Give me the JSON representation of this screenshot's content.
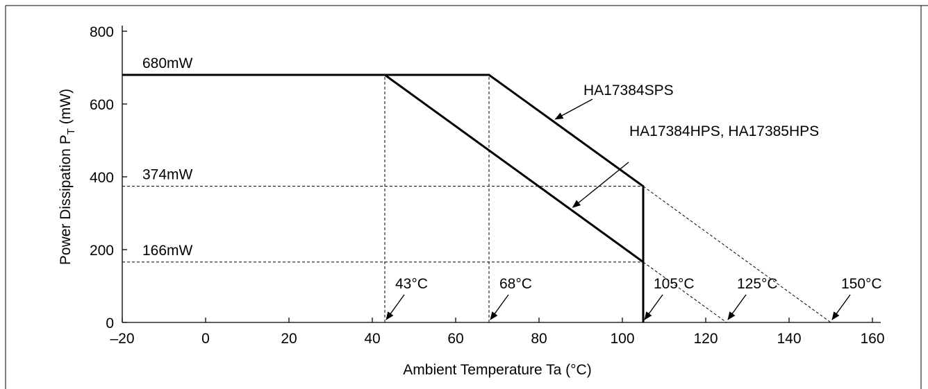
{
  "chart_data": {
    "type": "line",
    "title": "",
    "xlabel": "Ambient Temperature  Ta (°C)",
    "ylabel_main": "Power Dissipation  P",
    "ylabel_sub": "T",
    "ylabel_unit": " (mW)",
    "xlim": [
      -20,
      160
    ],
    "ylim": [
      0,
      800
    ],
    "x_ticks": [
      -20,
      0,
      20,
      40,
      60,
      80,
      100,
      120,
      140,
      160
    ],
    "x_tick_labels": [
      "–20",
      "0",
      "20",
      "40",
      "60",
      "80",
      "100",
      "120",
      "140",
      "160"
    ],
    "y_ticks": [
      0,
      200,
      400,
      600,
      800
    ],
    "y_tick_labels": [
      "0",
      "200",
      "400",
      "600",
      "800"
    ],
    "grid": false,
    "series": [
      {
        "name": "HA17384SPS",
        "points": [
          [
            -20,
            680
          ],
          [
            68,
            680
          ],
          [
            105,
            374
          ],
          [
            105,
            0
          ]
        ],
        "extension": [
          [
            105,
            374
          ],
          [
            150,
            0
          ]
        ]
      },
      {
        "name": "HA17384HPS, HA17385HPS",
        "points": [
          [
            -20,
            680
          ],
          [
            43,
            680
          ],
          [
            105,
            166
          ],
          [
            105,
            0
          ]
        ],
        "extension": [
          [
            105,
            166
          ],
          [
            125,
            0
          ]
        ]
      }
    ],
    "guides": {
      "horizontal": [
        {
          "y": 374,
          "x_end": 105
        },
        {
          "y": 166,
          "x_end": 105
        }
      ],
      "vertical": [
        {
          "x": 43,
          "y_end": 680
        },
        {
          "x": 68,
          "y_end": 680
        }
      ]
    },
    "value_labels": [
      {
        "text": "680mW",
        "y": 680
      },
      {
        "text": "374mW",
        "y": 374
      },
      {
        "text": "166mW",
        "y": 166
      }
    ],
    "temperature_labels": [
      {
        "text": "43°C",
        "x": 43
      },
      {
        "text": "68°C",
        "x": 68
      },
      {
        "text": "105°C",
        "x": 105
      },
      {
        "text": "125°C",
        "x": 125
      },
      {
        "text": "150°C",
        "x": 150
      }
    ]
  }
}
